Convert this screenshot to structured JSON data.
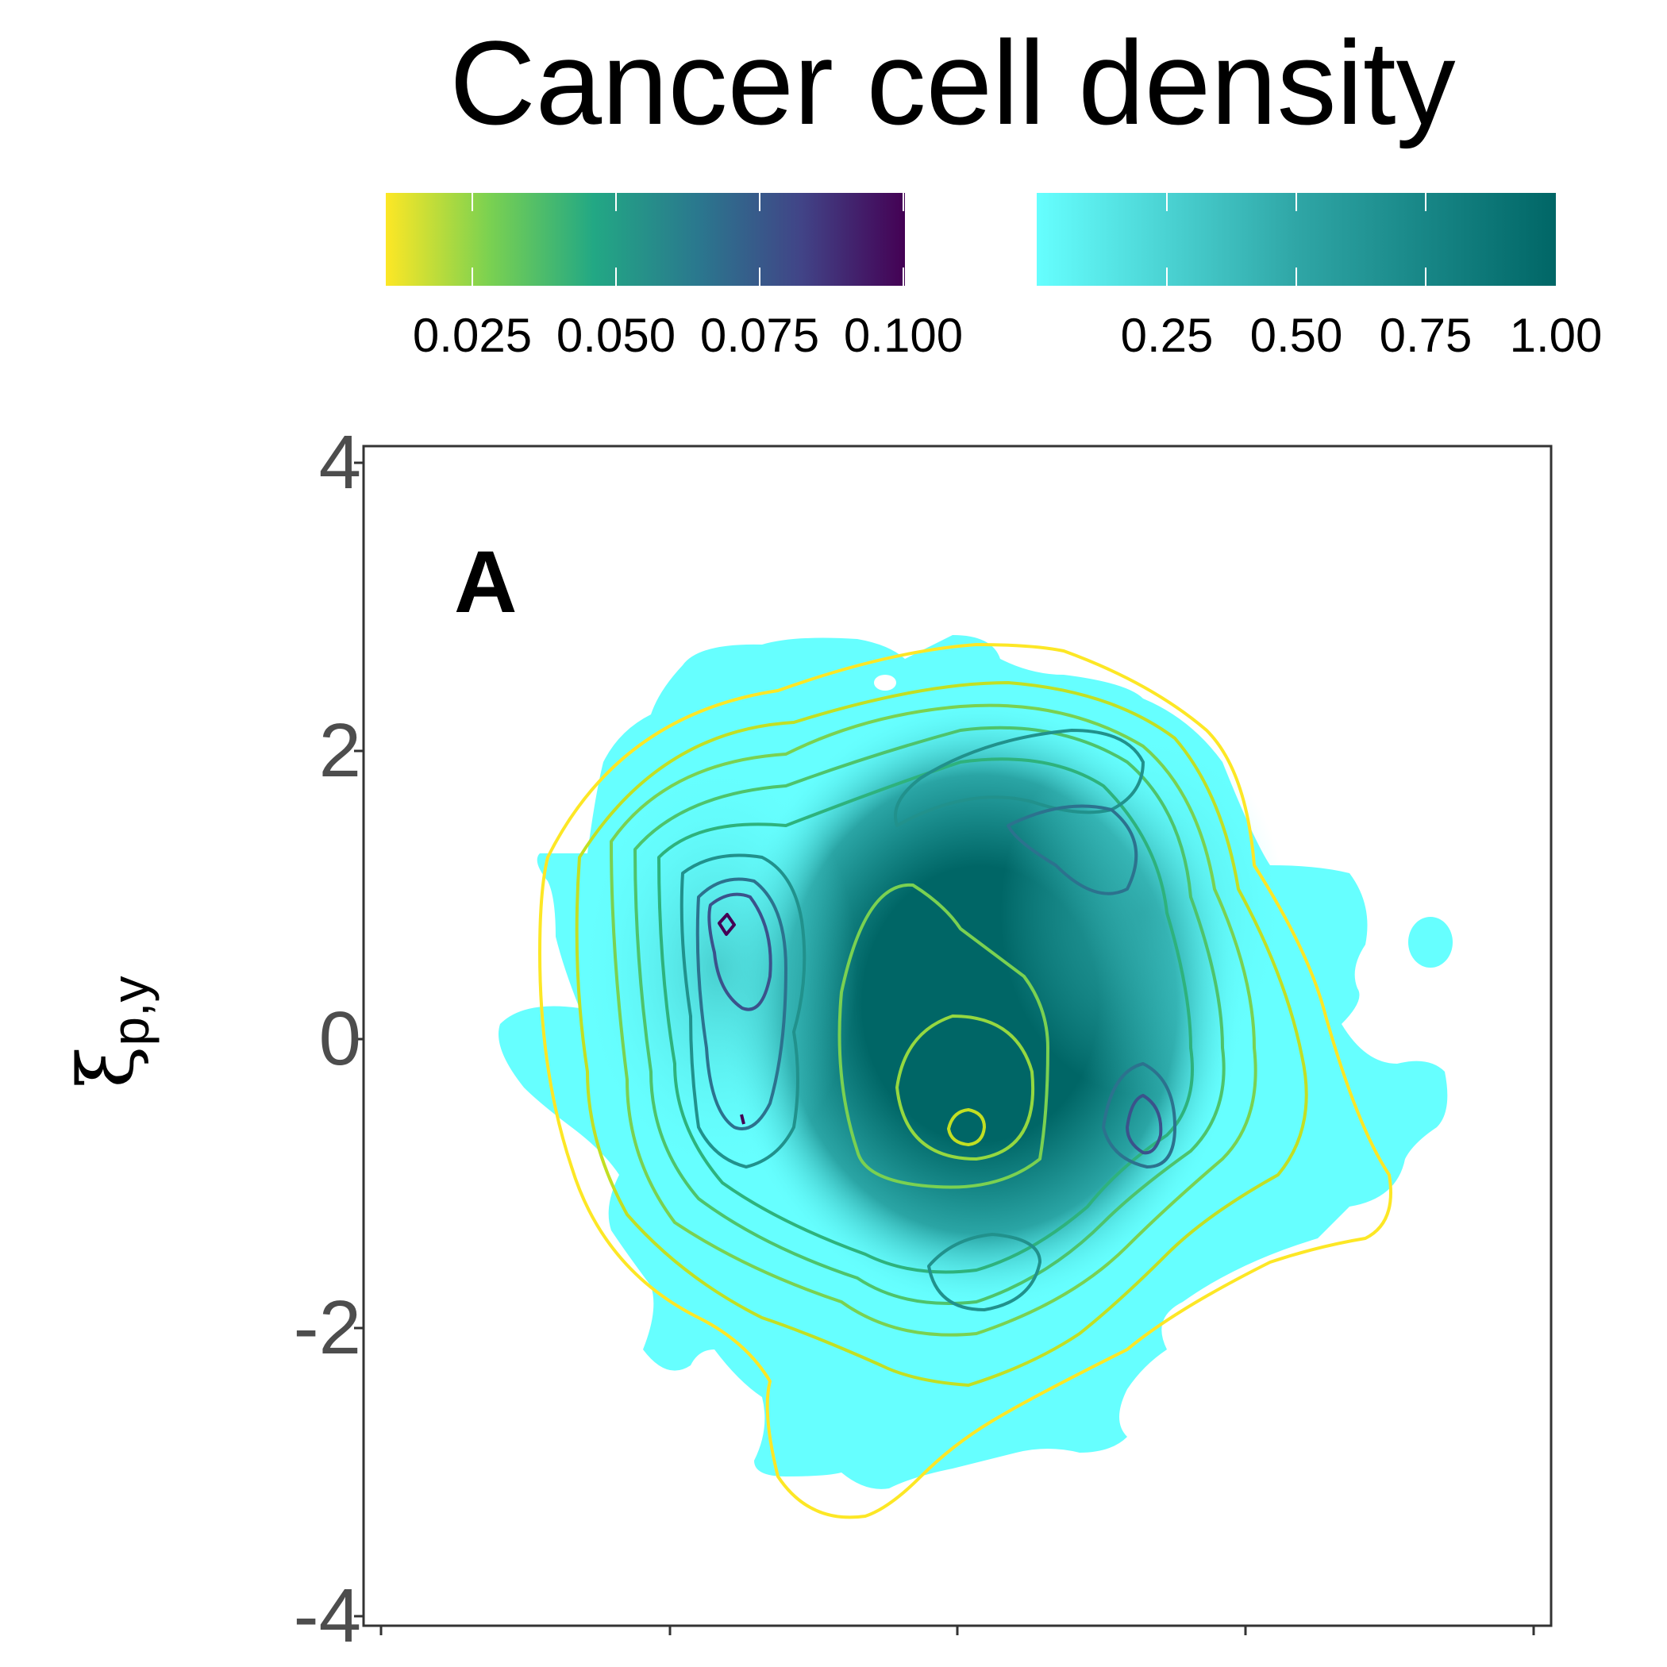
{
  "chart_data": {
    "type": "heatmap",
    "title": "Cancer cell density",
    "ylabel": "ξp,y",
    "xlabel": "",
    "panel_label": "A",
    "ylim": [
      -4.1,
      4.1
    ],
    "y_ticks": [
      "4",
      "2",
      "0",
      "-2",
      "-4"
    ],
    "x_ticks_count": 5,
    "legends": [
      {
        "name": "contour",
        "palette": "viridis (reversed)",
        "colors": [
          "#fde725",
          "#7ad151",
          "#22a884",
          "#2a788e",
          "#414487",
          "#440154"
        ],
        "tick_labels": [
          "0.025",
          "0.050",
          "0.075",
          "0.100"
        ]
      },
      {
        "name": "fill",
        "colors": [
          "#66ffff",
          "#006666"
        ],
        "tick_labels": [
          "0.25",
          "0.50",
          "0.75",
          "1.00"
        ]
      }
    ],
    "density_peaks": [
      {
        "x": -1.6,
        "y": 0.8,
        "level": 0.105
      },
      {
        "x": 0.05,
        "y": -0.6,
        "level": 0.025
      },
      {
        "x": 1.35,
        "y": -0.65,
        "level": 0.07
      },
      {
        "x": 1.05,
        "y": 1.45,
        "level": 0.07
      },
      {
        "x": 0.15,
        "y": -1.65,
        "level": 0.06
      }
    ],
    "grid": false,
    "legend_position": "top"
  }
}
